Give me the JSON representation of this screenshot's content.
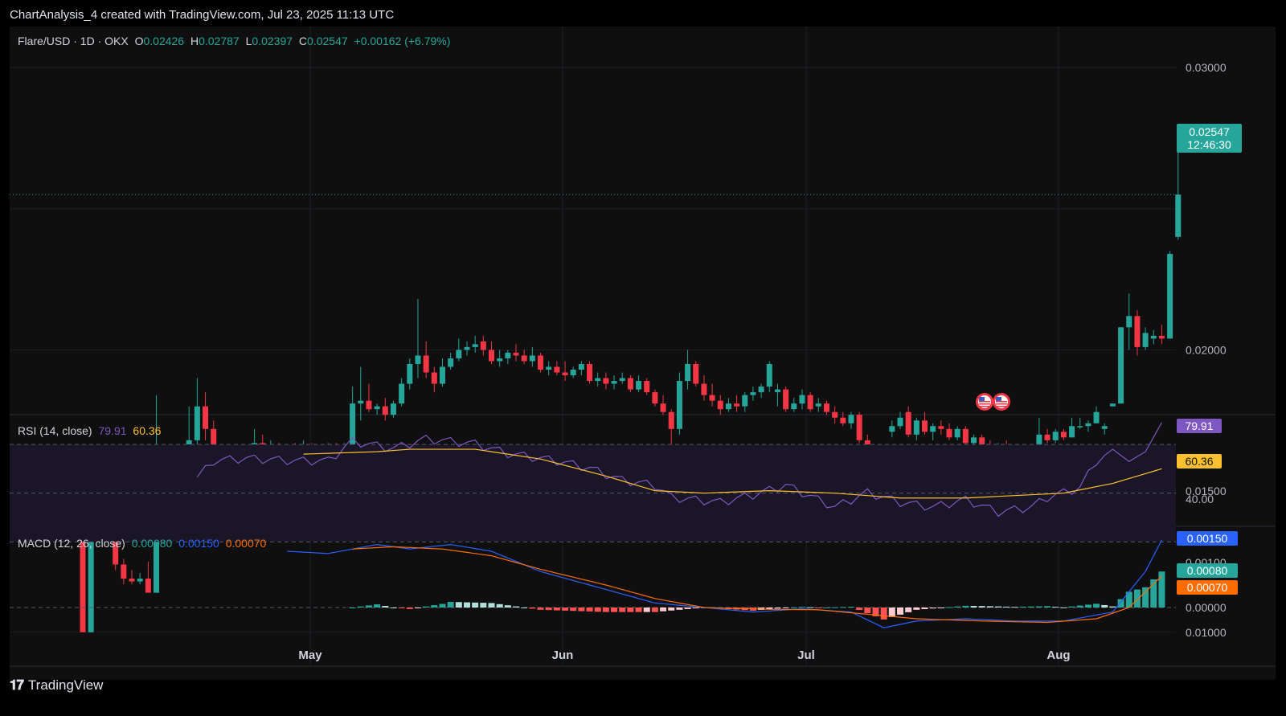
{
  "header": {
    "title": "ChartAnalysis_4 created with TradingView.com, Jul 23, 2025 11:13 UTC"
  },
  "legend": {
    "symbol": "Flare/USD · 1D · OKX",
    "o_label": "O",
    "o": "0.02426",
    "h_label": "H",
    "h": "0.02787",
    "l_label": "L",
    "l": "0.02397",
    "c_label": "C",
    "c": "0.02547",
    "change": "+0.00162 (+6.79%)"
  },
  "price_axis": [
    "0.03000",
    "0.02000",
    "0.01500",
    "0.01000"
  ],
  "last_price": {
    "value": "0.02547",
    "countdown": "12:46:30"
  },
  "rsi": {
    "label": "RSI (14, close)",
    "rsi_value": "79.91",
    "ma_value": "60.36",
    "axis_label": "40.00"
  },
  "macd": {
    "label": "MACD (12, 26, close)",
    "hist": "0.00080",
    "macd": "0.00150",
    "signal": "0.00070",
    "axis_labels": [
      "0.00100",
      "0.00000"
    ]
  },
  "time_axis": [
    "May",
    "Jun",
    "Jul",
    "Aug"
  ],
  "footer": {
    "brand": "TradingView"
  },
  "colors": {
    "up": "#26a69a",
    "down": "#f23645",
    "rsi": "#7e57c2",
    "rsi_ma": "#fbc02d",
    "macd": "#2962ff",
    "signal": "#ff6d00",
    "bg": "#0f0f0f"
  },
  "chart_data": {
    "type": "candlestick",
    "symbol": "Flare/USD",
    "interval": "1D",
    "exchange": "OKX",
    "ylim": [
      0.0075,
      0.0325
    ],
    "candles_ohlc": [
      [
        0.0132,
        0.0134,
        0.01,
        0.01
      ],
      [
        0.01,
        0.0134,
        0.01,
        0.0132
      ],
      [
        0.0132,
        0.0134,
        0.0131,
        0.0133
      ],
      [
        0.0133,
        0.0134,
        0.0132,
        0.0133
      ],
      [
        0.0133,
        0.0134,
        0.0122,
        0.0124
      ],
      [
        0.0124,
        0.0126,
        0.0117,
        0.0119
      ],
      [
        0.0119,
        0.0122,
        0.0117,
        0.0118
      ],
      [
        0.0118,
        0.0121,
        0.0117,
        0.0119
      ],
      [
        0.0119,
        0.0125,
        0.0114,
        0.0114
      ],
      [
        0.0114,
        0.0184,
        0.0114,
        0.0149
      ],
      [
        0.0149,
        0.0157,
        0.014,
        0.0145
      ],
      [
        0.0145,
        0.0157,
        0.014,
        0.0155
      ],
      [
        0.0155,
        0.0165,
        0.0148,
        0.016
      ],
      [
        0.016,
        0.018,
        0.0155,
        0.0168
      ],
      [
        0.0168,
        0.019,
        0.0165,
        0.018
      ],
      [
        0.018,
        0.0185,
        0.0168,
        0.0172
      ],
      [
        0.0172,
        0.0175,
        0.0159,
        0.0161
      ],
      [
        0.0151,
        0.0152,
        0.0147,
        0.0148
      ],
      [
        0.0148,
        0.0152,
        0.0146,
        0.0151
      ],
      [
        0.0151,
        0.0158,
        0.0148,
        0.0155
      ],
      [
        0.0155,
        0.0164,
        0.015,
        0.016
      ],
      [
        0.016,
        0.0172,
        0.0158,
        0.0167
      ],
      [
        0.0167,
        0.017,
        0.0161,
        0.0163
      ],
      [
        0.0163,
        0.0168,
        0.016,
        0.0166
      ],
      [
        0.0166,
        0.0167,
        0.016,
        0.0162
      ],
      [
        0.0162,
        0.0166,
        0.0161,
        0.0165
      ],
      [
        0.0165,
        0.0167,
        0.0162,
        0.0164
      ],
      [
        0.0164,
        0.0168,
        0.0163,
        0.0165
      ],
      [
        0.0165,
        0.0167,
        0.0163,
        0.0164
      ],
      [
        0.0164,
        0.0166,
        0.0163,
        0.0164
      ],
      [
        0.0164,
        0.0167,
        0.0163,
        0.0166
      ],
      [
        0.0166,
        0.0167,
        0.0164,
        0.0164
      ],
      [
        0.0164,
        0.0167,
        0.0163,
        0.0166
      ],
      [
        0.0166,
        0.0187,
        0.0166,
        0.0181
      ],
      [
        0.0181,
        0.0194,
        0.0175,
        0.0182
      ],
      [
        0.0182,
        0.0188,
        0.0178,
        0.0179
      ],
      [
        0.0179,
        0.0181,
        0.0177,
        0.018
      ],
      [
        0.018,
        0.0183,
        0.0175,
        0.0177
      ],
      [
        0.0177,
        0.0182,
        0.0176,
        0.0181
      ],
      [
        0.0181,
        0.019,
        0.018,
        0.0188
      ],
      [
        0.0188,
        0.0197,
        0.0186,
        0.0195
      ],
      [
        0.0195,
        0.0218,
        0.019,
        0.0198
      ],
      [
        0.0198,
        0.0203,
        0.019,
        0.0192
      ],
      [
        0.0192,
        0.0194,
        0.0185,
        0.0188
      ],
      [
        0.0188,
        0.0197,
        0.0187,
        0.0194
      ],
      [
        0.0194,
        0.0199,
        0.0193,
        0.0197
      ],
      [
        0.0197,
        0.0204,
        0.0196,
        0.02
      ],
      [
        0.02,
        0.0203,
        0.0198,
        0.0201
      ],
      [
        0.0201,
        0.0205,
        0.0199,
        0.0202
      ],
      [
        0.0203,
        0.0205,
        0.0198,
        0.02
      ],
      [
        0.02,
        0.0203,
        0.0195,
        0.0196
      ],
      [
        0.0196,
        0.02,
        0.0194,
        0.0197
      ],
      [
        0.0197,
        0.02,
        0.0195,
        0.0199
      ],
      [
        0.0199,
        0.0202,
        0.0196,
        0.0198
      ],
      [
        0.0198,
        0.02,
        0.0195,
        0.0196
      ],
      [
        0.0196,
        0.0201,
        0.0194,
        0.0198
      ],
      [
        0.0198,
        0.0199,
        0.0192,
        0.0193
      ],
      [
        0.0193,
        0.0196,
        0.0191,
        0.0194
      ],
      [
        0.0194,
        0.0196,
        0.0191,
        0.0192
      ],
      [
        0.0192,
        0.0196,
        0.0189,
        0.0191
      ],
      [
        0.0191,
        0.0194,
        0.019,
        0.0193
      ],
      [
        0.0193,
        0.0196,
        0.0191,
        0.0195
      ],
      [
        0.0195,
        0.0196,
        0.0188,
        0.0189
      ],
      [
        0.0189,
        0.0192,
        0.0187,
        0.019
      ],
      [
        0.019,
        0.0192,
        0.0186,
        0.0188
      ],
      [
        0.0188,
        0.0191,
        0.0186,
        0.0189
      ],
      [
        0.0189,
        0.0192,
        0.0188,
        0.019
      ],
      [
        0.019,
        0.0191,
        0.0185,
        0.0186
      ],
      [
        0.0186,
        0.0191,
        0.0185,
        0.0189
      ],
      [
        0.0189,
        0.019,
        0.0184,
        0.0185
      ],
      [
        0.0185,
        0.0186,
        0.018,
        0.0181
      ],
      [
        0.0181,
        0.0184,
        0.0177,
        0.0178
      ],
      [
        0.0178,
        0.0179,
        0.0163,
        0.0172
      ],
      [
        0.0172,
        0.0192,
        0.017,
        0.0189
      ],
      [
        0.0189,
        0.02,
        0.0186,
        0.0195
      ],
      [
        0.0195,
        0.0196,
        0.0187,
        0.0188
      ],
      [
        0.0188,
        0.0191,
        0.0182,
        0.0184
      ],
      [
        0.0184,
        0.0188,
        0.018,
        0.0182
      ],
      [
        0.0182,
        0.0184,
        0.0177,
        0.0179
      ],
      [
        0.0179,
        0.0183,
        0.0178,
        0.0181
      ],
      [
        0.0181,
        0.0184,
        0.0178,
        0.018
      ],
      [
        0.018,
        0.0185,
        0.0178,
        0.0184
      ],
      [
        0.0184,
        0.0187,
        0.0182,
        0.0185
      ],
      [
        0.0185,
        0.0188,
        0.0183,
        0.0187
      ],
      [
        0.0187,
        0.0196,
        0.0185,
        0.0195
      ],
      [
        0.0185,
        0.0188,
        0.018,
        0.0186
      ],
      [
        0.0186,
        0.0187,
        0.0178,
        0.0179
      ],
      [
        0.0179,
        0.0183,
        0.0178,
        0.0181
      ],
      [
        0.0181,
        0.0186,
        0.0179,
        0.0184
      ],
      [
        0.0184,
        0.0185,
        0.0178,
        0.0179
      ],
      [
        0.018,
        0.0183,
        0.0178,
        0.0181
      ],
      [
        0.0181,
        0.0182,
        0.0177,
        0.0178
      ],
      [
        0.0178,
        0.018,
        0.0174,
        0.0176
      ],
      [
        0.0176,
        0.0178,
        0.0173,
        0.0174
      ],
      [
        0.0174,
        0.0178,
        0.0172,
        0.0177
      ],
      [
        0.0177,
        0.0178,
        0.0167,
        0.0168
      ],
      [
        0.0168,
        0.017,
        0.0152,
        0.0159
      ],
      [
        0.0159,
        0.0164,
        0.0158,
        0.0163
      ],
      [
        0.0163,
        0.0165,
        0.0162,
        0.0164
      ],
      [
        0.0171,
        0.0175,
        0.0169,
        0.0173
      ],
      [
        0.0173,
        0.0178,
        0.0172,
        0.0176
      ],
      [
        0.0178,
        0.018,
        0.0169,
        0.017
      ],
      [
        0.017,
        0.0176,
        0.0168,
        0.0175
      ],
      [
        0.0175,
        0.0178,
        0.017,
        0.0171
      ],
      [
        0.0171,
        0.0174,
        0.0168,
        0.0173
      ],
      [
        0.0173,
        0.0175,
        0.017,
        0.0172
      ],
      [
        0.0172,
        0.0174,
        0.0168,
        0.0169
      ],
      [
        0.0169,
        0.0173,
        0.0168,
        0.0172
      ],
      [
        0.0172,
        0.0173,
        0.0166,
        0.0167
      ],
      [
        0.0167,
        0.017,
        0.0165,
        0.0169
      ],
      [
        0.0169,
        0.017,
        0.0165,
        0.0166
      ],
      [
        0.0166,
        0.0168,
        0.0164,
        0.0165
      ],
      [
        0.0165,
        0.0167,
        0.0164,
        0.0166
      ],
      [
        0.0166,
        0.0168,
        0.0163,
        0.0164
      ],
      [
        0.0164,
        0.0165,
        0.0159,
        0.016
      ],
      [
        0.016,
        0.0163,
        0.0158,
        0.0162
      ],
      [
        0.0162,
        0.0166,
        0.016,
        0.0165
      ],
      [
        0.0165,
        0.0176,
        0.0163,
        0.017
      ],
      [
        0.017,
        0.0172,
        0.0167,
        0.0168
      ],
      [
        0.0168,
        0.0172,
        0.0167,
        0.0171
      ],
      [
        0.0171,
        0.0172,
        0.0168,
        0.0169
      ],
      [
        0.0169,
        0.0176,
        0.0169,
        0.0173
      ],
      [
        0.0173,
        0.0176,
        0.0172,
        0.0173
      ],
      [
        0.0173,
        0.0175,
        0.0171,
        0.0174
      ],
      [
        0.0174,
        0.018,
        0.0174,
        0.0178
      ],
      [
        0.0172,
        0.0174,
        0.017,
        0.0173
      ],
      [
        0.018,
        0.0181,
        0.018,
        0.0181
      ],
      [
        0.0181,
        0.0208,
        0.0181,
        0.0208
      ],
      [
        0.0208,
        0.022,
        0.02,
        0.0212
      ],
      [
        0.0212,
        0.0214,
        0.0198,
        0.0201
      ],
      [
        0.0201,
        0.0208,
        0.02,
        0.0206
      ],
      [
        0.0204,
        0.0207,
        0.0202,
        0.0205
      ],
      [
        0.0205,
        0.0209,
        0.0202,
        0.0204
      ],
      [
        0.0204,
        0.0235,
        0.0204,
        0.0234
      ],
      [
        0.024,
        0.0279,
        0.0239,
        0.0255
      ]
    ]
  }
}
